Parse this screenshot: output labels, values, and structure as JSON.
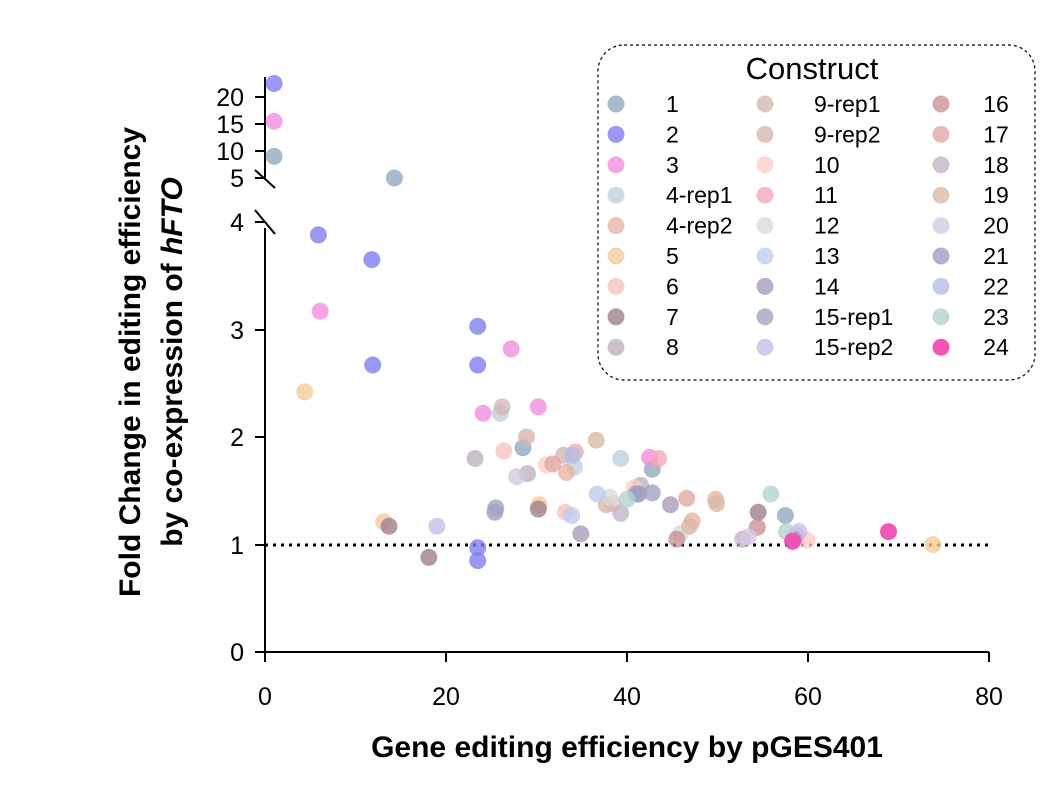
{
  "chart_data": {
    "type": "scatter",
    "xlabel": "Gene editing efficiency by pGES401",
    "ylabel_line1": "Fold Change in editing efficiency",
    "ylabel_line2_prefix": "by co-expression of ",
    "ylabel_line2_italic": "hFTO",
    "xlim": [
      0,
      80
    ],
    "x_ticks": [
      "0",
      "20",
      "40",
      "60",
      "80"
    ],
    "ylim_lower": [
      0,
      4
    ],
    "y_ticks_lower": [
      "0",
      "1",
      "2",
      "3",
      "4"
    ],
    "ylim_upper": [
      5,
      22
    ],
    "y_ticks_upper": [
      "5",
      "10",
      "15",
      "20"
    ],
    "reference_line_y": 1,
    "legend_title": "Construct",
    "legend_placement": "top-right",
    "series": [
      {
        "name": "1",
        "color": "#8fa8be",
        "points": [
          [
            1.0,
            9.0
          ],
          [
            14.3,
            5.0
          ],
          [
            28.5,
            1.9
          ],
          [
            42.8,
            1.7
          ],
          [
            57.5,
            1.27
          ]
        ]
      },
      {
        "name": "2",
        "color": "#7c7cf2",
        "points": [
          [
            1.0,
            22.5
          ],
          [
            5.9,
            3.88
          ],
          [
            11.8,
            3.65
          ],
          [
            11.9,
            2.67
          ],
          [
            23.5,
            3.03
          ],
          [
            23.5,
            2.67
          ],
          [
            23.5,
            0.97
          ],
          [
            23.5,
            0.85
          ]
        ]
      },
      {
        "name": "3",
        "color": "#f28ce0",
        "points": [
          [
            1.0,
            15.5
          ],
          [
            6.1,
            3.17
          ],
          [
            27.2,
            2.82
          ],
          [
            30.2,
            2.28
          ],
          [
            24.1,
            2.22
          ],
          [
            42.5,
            1.81
          ]
        ]
      },
      {
        "name": "4-rep1",
        "color": "#bccfdc",
        "points": [
          [
            26.0,
            2.22
          ],
          [
            34.2,
            1.72
          ],
          [
            39.3,
            1.8
          ]
        ]
      },
      {
        "name": "4-rep2",
        "color": "#e8b2a6",
        "points": [
          [
            33.3,
            1.67
          ],
          [
            34.3,
            1.86
          ],
          [
            47.2,
            1.22
          ],
          [
            49.8,
            1.42
          ]
        ]
      },
      {
        "name": "5",
        "color": "#f4c998",
        "points": [
          [
            4.4,
            2.42
          ],
          [
            13.1,
            1.21
          ],
          [
            30.3,
            1.37
          ],
          [
            73.8,
            1.0
          ]
        ]
      },
      {
        "name": "6",
        "color": "#f6c2c2",
        "points": [
          [
            26.4,
            1.87
          ],
          [
            33.2,
            1.3
          ],
          [
            38.4,
            1.38
          ]
        ]
      },
      {
        "name": "7",
        "color": "#9c7e8c",
        "points": [
          [
            18.1,
            0.88
          ],
          [
            13.7,
            1.17
          ],
          [
            30.2,
            1.33
          ],
          [
            54.5,
            1.3
          ]
        ]
      },
      {
        "name": "8",
        "color": "#bdb0bd",
        "points": [
          [
            23.2,
            1.8
          ],
          [
            29.0,
            1.66
          ],
          [
            41.5,
            1.55
          ]
        ]
      },
      {
        "name": "9-rep1",
        "color": "#d2b7b3",
        "points": [
          [
            26.2,
            2.28
          ],
          [
            33.0,
            1.83
          ]
        ]
      },
      {
        "name": "9-rep2",
        "color": "#d6b5ad",
        "points": [
          [
            28.9,
            2.0
          ],
          [
            37.7,
            1.37
          ]
        ]
      },
      {
        "name": "10",
        "color": "#fccdc3",
        "points": [
          [
            31.1,
            1.74
          ],
          [
            40.8,
            1.53
          ],
          [
            59.9,
            1.04
          ]
        ]
      },
      {
        "name": "11",
        "color": "#f4a8b8",
        "points": [
          [
            43.5,
            1.8
          ],
          [
            58.7,
            1.08
          ]
        ]
      },
      {
        "name": "12",
        "color": "#d7dbd5",
        "points": [
          [
            38.1,
            1.44
          ],
          [
            45.9,
            1.1
          ]
        ]
      },
      {
        "name": "13",
        "color": "#bccaee",
        "points": [
          [
            33.9,
            1.27
          ],
          [
            36.7,
            1.47
          ]
        ]
      },
      {
        "name": "14",
        "color": "#a89ab8",
        "points": [
          [
            25.4,
            1.3
          ],
          [
            34.9,
            1.1
          ],
          [
            41.3,
            1.47
          ],
          [
            44.8,
            1.37
          ]
        ]
      },
      {
        "name": "15-rep1",
        "color": "#9ea4c0",
        "points": [
          [
            25.5,
            1.34
          ],
          [
            42.8,
            1.48
          ]
        ]
      },
      {
        "name": "15-rep2",
        "color": "#c5bde8",
        "points": [
          [
            19.0,
            1.17
          ],
          [
            59.0,
            1.12
          ]
        ]
      },
      {
        "name": "16",
        "color": "#c98f95",
        "points": [
          [
            54.4,
            1.16
          ],
          [
            45.5,
            1.05
          ]
        ]
      },
      {
        "name": "17",
        "color": "#dfa7a3",
        "points": [
          [
            31.8,
            1.75
          ],
          [
            46.6,
            1.43
          ]
        ]
      },
      {
        "name": "18",
        "color": "#c4b2c4",
        "points": [
          [
            39.3,
            1.29
          ],
          [
            52.8,
            1.05
          ]
        ]
      },
      {
        "name": "19",
        "color": "#d9b9a4",
        "points": [
          [
            36.6,
            1.97
          ],
          [
            46.9,
            1.17
          ],
          [
            49.9,
            1.38
          ]
        ]
      },
      {
        "name": "20",
        "color": "#d3c8e1",
        "points": [
          [
            27.8,
            1.63
          ],
          [
            53.4,
            1.07
          ]
        ]
      },
      {
        "name": "21",
        "color": "#9b9cc6",
        "points": [
          [
            41.0,
            1.47
          ],
          [
            58.4,
            1.05
          ]
        ]
      },
      {
        "name": "22",
        "color": "#b3bbe8",
        "points": [
          [
            34.0,
            1.83
          ]
        ]
      },
      {
        "name": "23",
        "color": "#b3d2ce",
        "points": [
          [
            55.9,
            1.47
          ],
          [
            57.6,
            1.12
          ],
          [
            40.0,
            1.42
          ]
        ]
      },
      {
        "name": "24",
        "color": "#f04fb2",
        "points": [
          [
            68.9,
            1.12
          ],
          [
            58.3,
            1.03
          ]
        ]
      }
    ]
  }
}
